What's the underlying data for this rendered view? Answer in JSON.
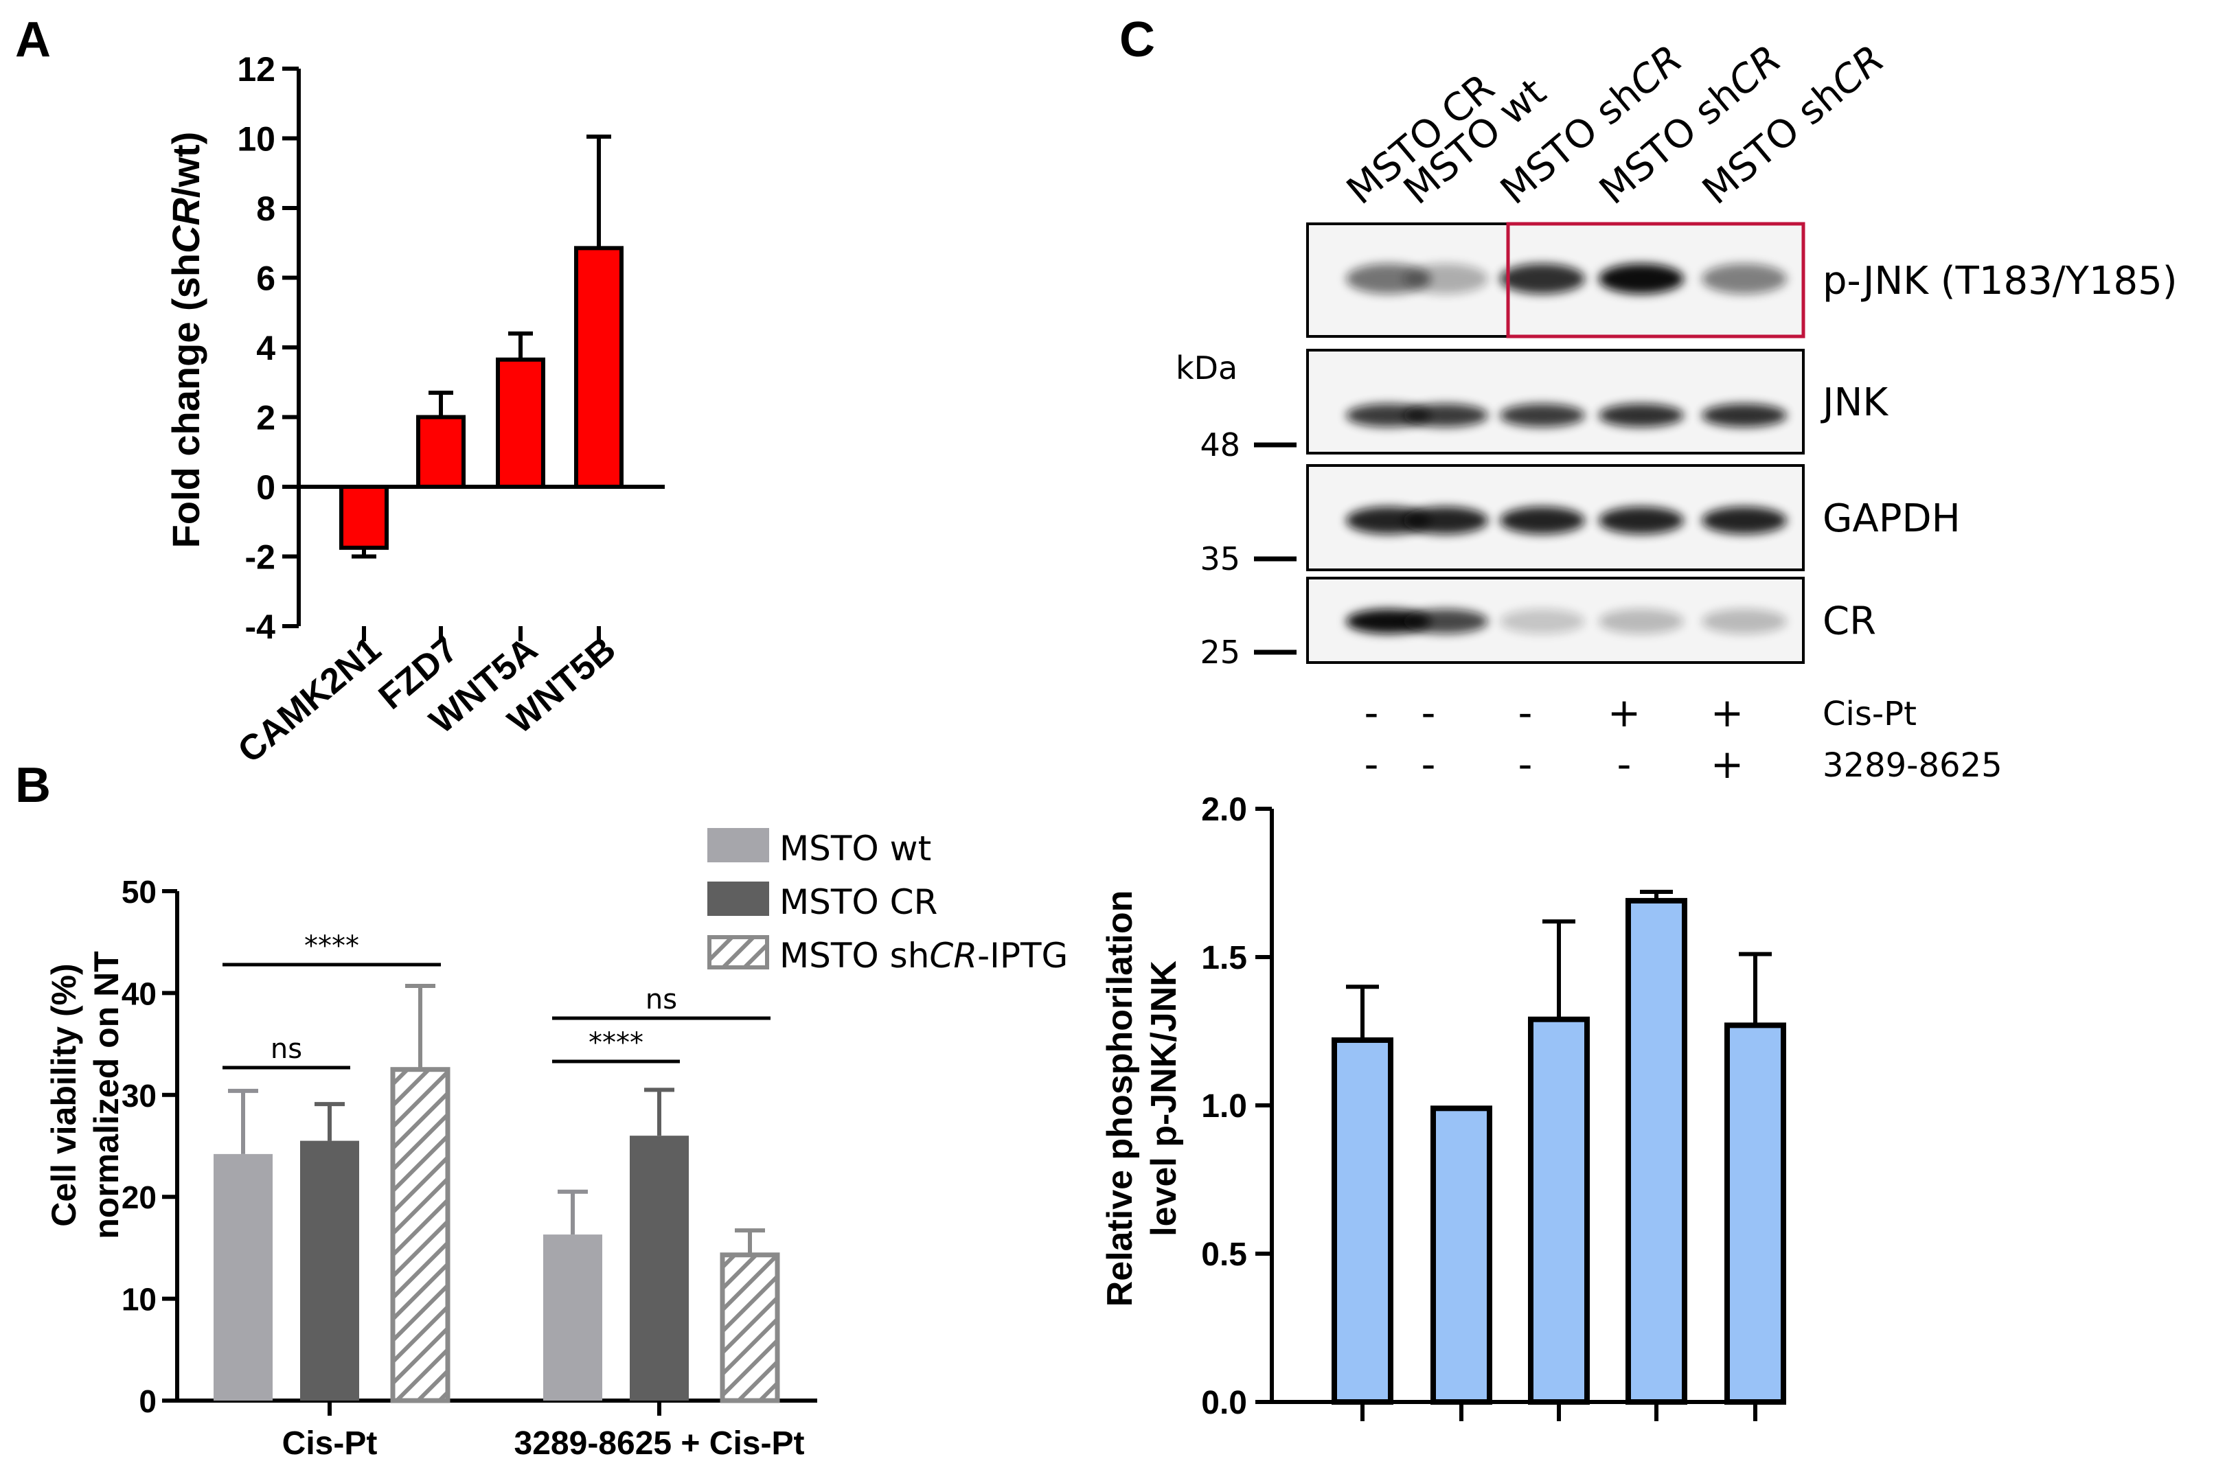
{
  "panel_labels": {
    "a": "A",
    "b": "B",
    "c": "C"
  },
  "colors": {
    "red": "#ff0000",
    "light_gray": "#a6a6ab",
    "dark_gray": "#5f5f5f",
    "blue": "#99c2f7",
    "box_red": "#c0143c"
  },
  "chart_data": [
    {
      "id": "A",
      "type": "bar",
      "ylabel": "Fold change (shCR/wt)",
      "ylabel_parts": {
        "pre": "Fold change (sh",
        "italic": "CR",
        "post": "/wt)"
      },
      "ylim": [
        -4,
        12
      ],
      "yticks": [
        -4,
        -2,
        0,
        2,
        4,
        6,
        8,
        10,
        12
      ],
      "categories": [
        "CAMK2N1",
        "FZD7",
        "WNT5A",
        "WNT5B"
      ],
      "values": [
        -1.75,
        2.0,
        3.65,
        6.85
      ],
      "errors": [
        0.25,
        0.7,
        0.75,
        3.2
      ],
      "color": "#ff0000"
    },
    {
      "id": "B",
      "type": "bar",
      "ylabel_lines": [
        "Cell viability (%)",
        "normalized on NT"
      ],
      "ylim": [
        0,
        50
      ],
      "yticks": [
        0,
        10,
        20,
        30,
        40,
        50
      ],
      "groups": [
        "Cis-Pt",
        "3289-8625 + Cis-Pt"
      ],
      "series": [
        {
          "name": "MSTO wt",
          "values": [
            24.2,
            16.3
          ],
          "errors": [
            6.2,
            4.2
          ],
          "fill": "light_gray"
        },
        {
          "name": "MSTO CR",
          "values": [
            25.5,
            26.0
          ],
          "errors": [
            3.6,
            4.5
          ],
          "fill": "dark_gray"
        },
        {
          "name": "MSTO shCR-IPTG",
          "name_parts": {
            "pre": "MSTO sh",
            "italic": "CR",
            "post": "-IPTG"
          },
          "values": [
            32.5,
            14.3
          ],
          "errors": [
            8.2,
            2.4
          ],
          "fill": "hatch"
        }
      ],
      "significance": [
        {
          "label": "****",
          "from": [
            0,
            0
          ],
          "to": [
            0,
            2
          ]
        },
        {
          "label": "ns",
          "from": [
            0,
            0
          ],
          "to": [
            0,
            1
          ]
        },
        {
          "label": "ns",
          "from": [
            1,
            0
          ],
          "to": [
            1,
            2
          ]
        },
        {
          "label": "****",
          "from": [
            1,
            0
          ],
          "to": [
            1,
            1
          ]
        }
      ]
    },
    {
      "id": "C-blot",
      "type": "other",
      "lanes": [
        {
          "pre": "MSTO ",
          "italic": "",
          "post": "CR"
        },
        {
          "pre": "MSTO wt",
          "italic": "",
          "post": ""
        },
        {
          "pre": "MSTO sh",
          "italic": "CR",
          "post": ""
        },
        {
          "pre": "MSTO sh",
          "italic": "CR",
          "post": ""
        },
        {
          "pre": "MSTO sh",
          "italic": "CR",
          "post": ""
        }
      ],
      "bands": [
        "p-JNK (T183/Y185)",
        "JNK",
        "GAPDH",
        "CR"
      ],
      "band_intensity": [
        [
          0.55,
          0.3,
          0.85,
          1.0,
          0.5
        ],
        [
          0.8,
          0.8,
          0.8,
          0.85,
          0.85
        ],
        [
          0.9,
          0.9,
          0.9,
          0.9,
          0.9
        ],
        [
          1.0,
          0.75,
          0.2,
          0.25,
          0.25
        ]
      ],
      "kda_label": "kDa",
      "markers": [
        "48",
        "35",
        "25"
      ],
      "treatments": [
        {
          "name": "Cis-Pt",
          "signs": [
            "-",
            "-",
            "-",
            "+",
            "+"
          ]
        },
        {
          "name": "3289-8625",
          "signs": [
            "-",
            "-",
            "-",
            "-",
            "+"
          ]
        }
      ]
    },
    {
      "id": "C-chart",
      "type": "bar",
      "ylabel_lines": [
        "Relative phosphorilation",
        "level p-JNK/JNK"
      ],
      "ylim": [
        0,
        2.0
      ],
      "yticks": [
        "0.0",
        "0.5",
        "1.0",
        "1.5",
        "2.0"
      ],
      "values": [
        1.22,
        0.99,
        1.29,
        1.69,
        1.27
      ],
      "errors": [
        0.18,
        0,
        0.33,
        0.03,
        0.24
      ],
      "color": "#99c2f7"
    }
  ]
}
